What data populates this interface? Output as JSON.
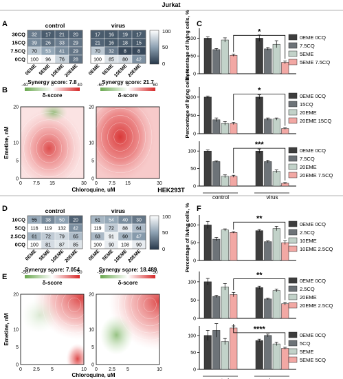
{
  "figure": {
    "sections": [
      {
        "title": "Jurkat",
        "heat_letter": "A",
        "synergy_letter": "B",
        "bar_letter": "C",
        "heatmap_titles": [
          "control",
          "virus"
        ]
      },
      {
        "title": "HEK293T",
        "heat_letter": "D",
        "synergy_letter": "E",
        "bar_letter": "F",
        "heatmap_titles": [
          "control",
          "virus"
        ]
      }
    ]
  },
  "colors": {
    "bar_dark": "#3d3d3d",
    "bar_mid": "#6d7378",
    "bar_light": "#c2d2c9",
    "bar_pink": "#f2a8a4",
    "heat_low": "#28384a",
    "heat_high": "#ffffff",
    "syn_neg": "#6aa84f",
    "syn_pos": "#d62828"
  },
  "chart_data": [
    {
      "type": "heatmap",
      "panel": "A",
      "title": "control",
      "rows": [
        "30CQ",
        "15CQ",
        "7.5CQ",
        "0CQ"
      ],
      "cols": [
        "0EME",
        "5EME",
        "10EME",
        "20EME"
      ],
      "values": [
        [
          32,
          17,
          21,
          20
        ],
        [
          39,
          26,
          33,
          29
        ],
        [
          70,
          53,
          41,
          29
        ],
        [
          100,
          96,
          76,
          28
        ]
      ],
      "colorbar": {
        "ticks": [
          "100",
          "50",
          "0"
        ],
        "range": [
          0,
          100
        ]
      }
    },
    {
      "type": "heatmap",
      "panel": "A",
      "title": "virus",
      "rows": [
        "30CQ",
        "15CQ",
        "7.5CQ",
        "0CQ"
      ],
      "cols": [
        "0EME",
        "5EME",
        "10EME",
        "20EME"
      ],
      "values": [
        [
          17,
          16,
          19,
          17
        ],
        [
          21,
          16,
          18,
          15
        ],
        [
          70,
          32,
          8,
          8
        ],
        [
          100,
          85,
          80,
          42
        ]
      ]
    },
    {
      "type": "heatmap",
      "panel": "D",
      "title": "control",
      "rows": [
        "10CQ",
        "5CQ",
        "2.5CQ",
        "0CQ"
      ],
      "cols": [
        "0EME",
        "5EME",
        "10EME",
        "20EME"
      ],
      "values": [
        [
          55,
          38,
          50,
          20
        ],
        [
          116,
          119,
          132,
          42
        ],
        [
          61,
          72,
          79,
          65
        ],
        [
          100,
          81,
          87,
          85
        ]
      ],
      "colorbar": {
        "ticks": [
          "100",
          "50",
          "0"
        ],
        "range": [
          0,
          100
        ]
      }
    },
    {
      "type": "heatmap",
      "panel": "D",
      "title": "virus",
      "rows": [
        "10CQ",
        "5CQ",
        "2.5CQ",
        "0CQ"
      ],
      "cols": [
        "0EME",
        "5EME",
        "10EME",
        "20EME"
      ],
      "values": [
        [
          61,
          54,
          40,
          30
        ],
        [
          119,
          72,
          88,
          64
        ],
        [
          63,
          91,
          60,
          47
        ],
        [
          100,
          90,
          108,
          90
        ]
      ]
    },
    {
      "type": "synergy_surface",
      "panel": "B",
      "title": "Synergy score: 7.8",
      "legend_label": "δ-score",
      "legend_ticks": [
        "-40",
        "0",
        "40"
      ],
      "xlabel": "Chloroquine, uM",
      "ylabel": "Emetine, nM",
      "xticks": [
        "0",
        "7.5",
        "15",
        "30"
      ],
      "yticks": [
        "0",
        "5",
        "10",
        "20"
      ],
      "peak": 30
    },
    {
      "type": "synergy_surface",
      "panel": "B",
      "title": "Synergy score: 21.7",
      "legend_label": "δ-score",
      "legend_ticks": [
        "-60",
        "0",
        "60"
      ],
      "xlabel": "Chloroquine, uM",
      "yticks": [
        "0",
        "5",
        "10",
        "20"
      ],
      "xticks": [
        "0",
        "7.5",
        "15",
        "30"
      ],
      "peak": 50
    },
    {
      "type": "synergy_surface",
      "panel": "E",
      "title": "Synergy score: 7.054",
      "legend_label": "δ-score",
      "legend_ticks": [
        "-50",
        "0",
        "50"
      ],
      "xlabel": "Chloroquine, uM",
      "ylabel": "Emetine, nM",
      "xticks": [
        "0",
        "2.5",
        "5",
        "10"
      ],
      "yticks": [
        "0",
        "5",
        "10",
        "20"
      ],
      "peak": 40
    },
    {
      "type": "synergy_surface",
      "panel": "E",
      "title": "Synergy score: 18.489",
      "legend_label": "δ-score",
      "legend_ticks": [
        "-50",
        "0",
        "50"
      ],
      "xlabel": "Chloroquine, uM",
      "xticks": [
        "0",
        "2.5",
        "5",
        "10"
      ],
      "yticks": [
        "0",
        "5",
        "10",
        "20"
      ],
      "peak": 50
    },
    {
      "type": "bar",
      "panel": "C",
      "ylabel": "Percentage of living cells, %",
      "ylim": [
        0,
        100
      ],
      "yticks": [
        0,
        50,
        100
      ],
      "groups": [
        "control",
        "virus"
      ],
      "legend": [
        "0EME 0CQ",
        "7.5CQ",
        "5EME",
        "5EME 7.5CQ"
      ],
      "significance": "*",
      "series": [
        {
          "values": [
            100,
            68,
            95,
            52
          ],
          "errors": [
            4,
            3,
            6,
            3
          ]
        },
        {
          "values": [
            100,
            70,
            83,
            32
          ],
          "errors": [
            9,
            4,
            10,
            4
          ]
        }
      ]
    },
    {
      "type": "bar",
      "panel": "C",
      "ylabel": "Percentage of living cells, %",
      "ylim": [
        0,
        100
      ],
      "yticks": [
        0,
        50,
        100
      ],
      "groups": [
        "control",
        "virus"
      ],
      "legend": [
        "0EME 0CQ",
        "15CQ",
        "20EME",
        "20EME 15CQ"
      ],
      "significance": "*",
      "series": [
        {
          "values": [
            100,
            38,
            28,
            28
          ],
          "errors": [
            3,
            5,
            5,
            3
          ]
        },
        {
          "values": [
            100,
            40,
            40,
            14
          ],
          "errors": [
            6,
            3,
            3,
            2
          ]
        }
      ]
    },
    {
      "type": "bar",
      "panel": "C",
      "ylabel": "Percentage of living cells, %",
      "ylim": [
        0,
        100
      ],
      "yticks": [
        0,
        50,
        100
      ],
      "groups": [
        "control",
        "virus"
      ],
      "legend": [
        "0EME 0CQ",
        "7.5CQ",
        "20EME",
        "20EME 7.5CQ"
      ],
      "significance": "***",
      "series": [
        {
          "values": [
            100,
            70,
            28,
            28
          ],
          "errors": [
            3,
            2,
            4,
            3
          ]
        },
        {
          "values": [
            100,
            70,
            42,
            8
          ],
          "errors": [
            6,
            4,
            4,
            2
          ]
        }
      ]
    },
    {
      "type": "bar",
      "panel": "F",
      "ylabel": "Percentage of living cells, %",
      "ylim": [
        0,
        100
      ],
      "yticks": [
        0,
        50,
        100
      ],
      "groups": [
        "control",
        "virus"
      ],
      "legend": [
        "0EME 0CQ",
        "2.5CQ",
        "10EME",
        "10EME 2.5CQ"
      ],
      "significance": "**",
      "series": [
        {
          "values": [
            100,
            60,
            86,
            79
          ],
          "errors": [
            10,
            5,
            3,
            2
          ]
        },
        {
          "values": [
            84,
            53,
            90,
            50
          ],
          "errors": [
            3,
            2,
            6,
            5
          ]
        }
      ]
    },
    {
      "type": "bar",
      "panel": "F",
      "ylabel": "Percentage of living cells, %",
      "ylim": [
        0,
        100
      ],
      "yticks": [
        0,
        50,
        100
      ],
      "groups": [
        "control",
        "virus"
      ],
      "legend": [
        "0EME 0CQ",
        "2.5CQ",
        "20EME",
        "20EME 2.5CQ"
      ],
      "significance": "**",
      "series": [
        {
          "values": [
            100,
            60,
            86,
            65
          ],
          "errors": [
            9,
            3,
            9,
            6
          ]
        },
        {
          "values": [
            84,
            53,
            76,
            40
          ],
          "errors": [
            4,
            2,
            4,
            4
          ]
        }
      ]
    },
    {
      "type": "bar",
      "panel": "F",
      "ylabel": "Percentage of living cells, %",
      "ylim": [
        0,
        100
      ],
      "yticks": [
        0,
        50,
        100
      ],
      "groups": [
        "control",
        "virus"
      ],
      "legend": [
        "0EME 0CQ",
        "5CQ",
        "5EME",
        "5EME 5CQ"
      ],
      "significance": "****",
      "series": [
        {
          "values": [
            100,
            115,
            82,
            122
          ],
          "errors": [
            15,
            20,
            9,
            6
          ]
        },
        {
          "values": [
            85,
            100,
            75,
            62
          ],
          "errors": [
            4,
            4,
            5,
            3
          ]
        }
      ]
    }
  ]
}
